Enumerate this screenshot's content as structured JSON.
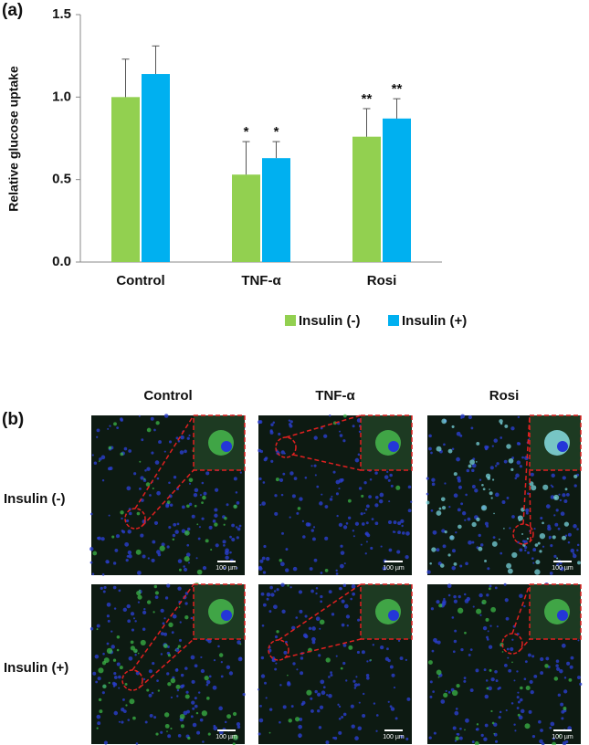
{
  "chart_data": {
    "type": "bar",
    "panel_label": "(a)",
    "ylabel": "Relative glucose uptake",
    "categories": [
      "Control",
      "TNF-α",
      "Rosi"
    ],
    "series": [
      {
        "name": "Insulin (-)",
        "color": "#92d050",
        "values": [
          1.0,
          0.53,
          0.76
        ],
        "errors": [
          0.23,
          0.2,
          0.17
        ],
        "significance": [
          null,
          "*",
          "**"
        ]
      },
      {
        "name": "Insulin (+)",
        "color": "#00b0f0",
        "values": [
          1.14,
          0.63,
          0.87
        ],
        "errors": [
          0.17,
          0.1,
          0.12
        ],
        "significance": [
          null,
          "*",
          "**"
        ]
      }
    ],
    "ylim": [
      0,
      1.5
    ],
    "yticks": [
      {
        "value": 0,
        "label": "0.0"
      },
      0.5,
      {
        "value": 1,
        "label": "1.0"
      },
      1.5
    ]
  },
  "images": {
    "panel_label": "(b)",
    "columns": [
      "Control",
      "TNF-α",
      "Rosi"
    ],
    "rows": [
      "Insulin (-)",
      "Insulin (+)"
    ],
    "scale_bar": "100 µm"
  }
}
